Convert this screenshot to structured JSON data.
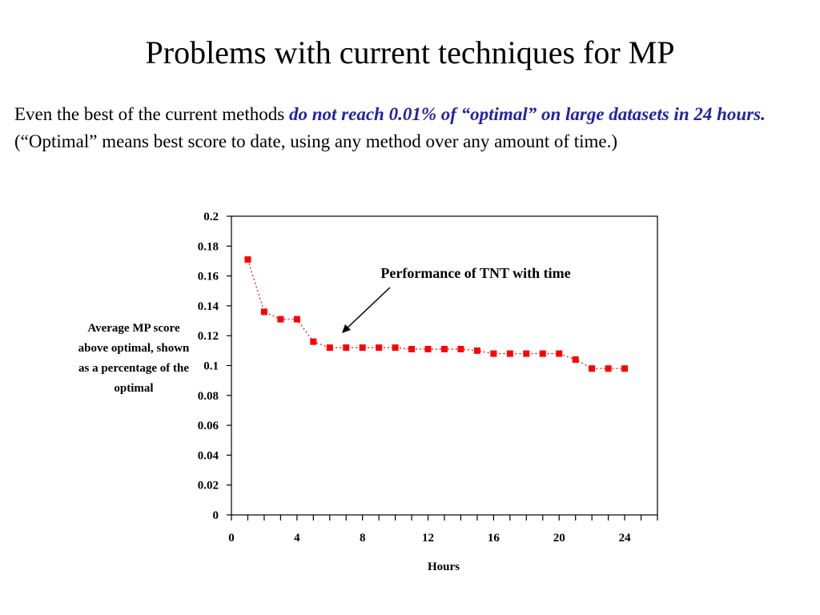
{
  "title": "Problems with current techniques for MP",
  "body": {
    "text_before": "Even the best of the current methods ",
    "emphasis": "do not reach 0.01% of “optimal” on large datasets in 24 hours.",
    "text_after": " (“Optimal” means best score to date, using any method over any amount of time.)"
  },
  "colors": {
    "emphasis": "#2323a6",
    "series": "#ff0000"
  },
  "chart_data": {
    "type": "scatter",
    "xlabel": "Hours",
    "ylabel": "Average MP score above optimal, shown as a percentage of the optimal",
    "xlim": [
      0,
      26
    ],
    "ylim": [
      0,
      0.2
    ],
    "x_ticks": [
      0,
      4,
      8,
      12,
      16,
      20,
      24
    ],
    "y_ticks": [
      0,
      0.02,
      0.04,
      0.06,
      0.08,
      0.1,
      0.12,
      0.14,
      0.16,
      0.18,
      0.2
    ],
    "x_minor_tick_step": 1,
    "grid": false,
    "annotation": "Performance of TNT with time",
    "series": [
      {
        "marker": "square",
        "line": "dotted",
        "color": "#ff0000",
        "x": [
          1,
          2,
          3,
          4,
          5,
          6,
          7,
          8,
          9,
          10,
          11,
          12,
          13,
          14,
          15,
          16,
          17,
          18,
          19,
          20,
          21,
          22,
          23,
          24
        ],
        "y": [
          0.171,
          0.136,
          0.131,
          0.131,
          0.116,
          0.112,
          0.112,
          0.112,
          0.112,
          0.112,
          0.111,
          0.111,
          0.111,
          0.111,
          0.11,
          0.108,
          0.108,
          0.108,
          0.108,
          0.108,
          0.104,
          0.098,
          0.098,
          0.098
        ]
      }
    ]
  }
}
